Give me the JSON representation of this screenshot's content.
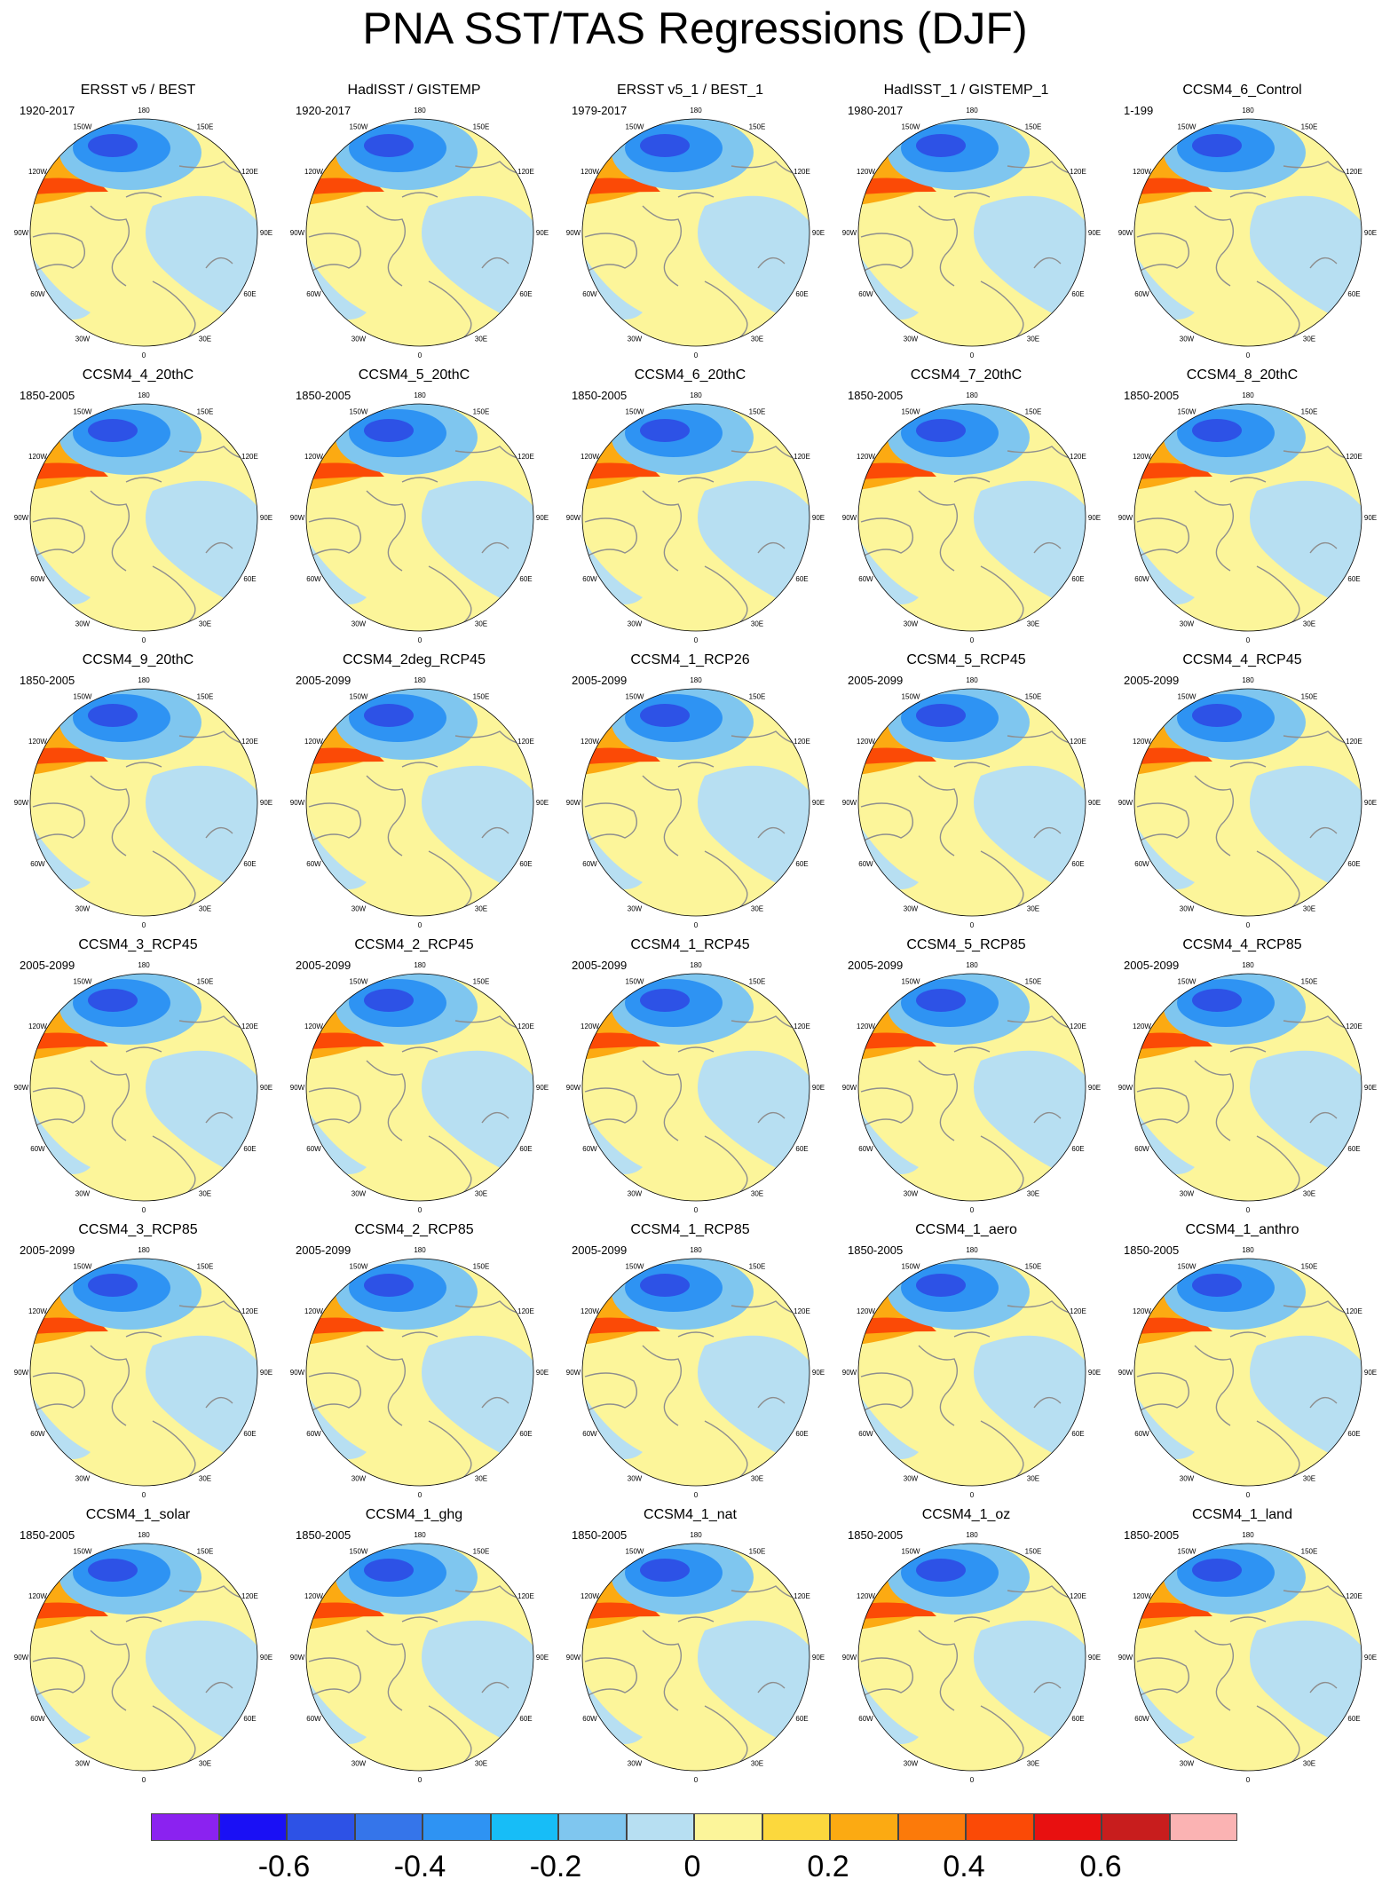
{
  "title": "PNA SST/TAS Regressions (DJF)",
  "longitude_labels": [
    "180",
    "150E",
    "120E",
    "90E",
    "60E",
    "30E",
    "0",
    "30W",
    "60W",
    "90W",
    "120W",
    "150W"
  ],
  "panels": [
    {
      "title": "ERSST v5 / BEST",
      "period": "1920-2017"
    },
    {
      "title": "HadISST / GISTEMP",
      "period": "1920-2017"
    },
    {
      "title": "ERSST v5_1 / BEST_1",
      "period": "1979-2017"
    },
    {
      "title": "HadISST_1 / GISTEMP_1",
      "period": "1980-2017"
    },
    {
      "title": "CCSM4_6_Control",
      "period": "1-199"
    },
    {
      "title": "CCSM4_4_20thC",
      "period": "1850-2005"
    },
    {
      "title": "CCSM4_5_20thC",
      "period": "1850-2005"
    },
    {
      "title": "CCSM4_6_20thC",
      "period": "1850-2005"
    },
    {
      "title": "CCSM4_7_20thC",
      "period": "1850-2005"
    },
    {
      "title": "CCSM4_8_20thC",
      "period": "1850-2005"
    },
    {
      "title": "CCSM4_9_20thC",
      "period": "1850-2005"
    },
    {
      "title": "CCSM4_2deg_RCP45",
      "period": "2005-2099"
    },
    {
      "title": "CCSM4_1_RCP26",
      "period": "2005-2099"
    },
    {
      "title": "CCSM4_5_RCP45",
      "period": "2005-2099"
    },
    {
      "title": "CCSM4_4_RCP45",
      "period": "2005-2099"
    },
    {
      "title": "CCSM4_3_RCP45",
      "period": "2005-2099"
    },
    {
      "title": "CCSM4_2_RCP45",
      "period": "2005-2099"
    },
    {
      "title": "CCSM4_1_RCP45",
      "period": "2005-2099"
    },
    {
      "title": "CCSM4_5_RCP85",
      "period": "2005-2099"
    },
    {
      "title": "CCSM4_4_RCP85",
      "period": "2005-2099"
    },
    {
      "title": "CCSM4_3_RCP85",
      "period": "2005-2099"
    },
    {
      "title": "CCSM4_2_RCP85",
      "period": "2005-2099"
    },
    {
      "title": "CCSM4_1_RCP85",
      "period": "2005-2099"
    },
    {
      "title": "CCSM4_1_aero",
      "period": "1850-2005"
    },
    {
      "title": "CCSM4_1_anthro",
      "period": "1850-2005"
    },
    {
      "title": "CCSM4_1_solar",
      "period": "1850-2005"
    },
    {
      "title": "CCSM4_1_ghg",
      "period": "1850-2005"
    },
    {
      "title": "CCSM4_1_nat",
      "period": "1850-2005"
    },
    {
      "title": "CCSM4_1_oz",
      "period": "1850-2005"
    },
    {
      "title": "CCSM4_1_land",
      "period": "1850-2005"
    }
  ],
  "colorbar": {
    "colors": [
      "#8b22f0",
      "#1a10f5",
      "#2d52e6",
      "#3575ea",
      "#2e93f3",
      "#17bdf7",
      "#7fc6ef",
      "#b7dff2",
      "#fcf59a",
      "#fcd83d",
      "#fcaa12",
      "#fc7a0a",
      "#fb4a06",
      "#e81010",
      "#c81d1d",
      "#fbb3b3"
    ],
    "tick_labels": [
      "-0.6",
      "-0.4",
      "-0.2",
      "0",
      "0.2",
      "0.4",
      "0.6"
    ]
  },
  "colors": {
    "background_field": "#fcf59a",
    "cold_center": "#2d52e6",
    "warm_band": "#fb4a06",
    "land_outline": "#8e8e8e"
  }
}
